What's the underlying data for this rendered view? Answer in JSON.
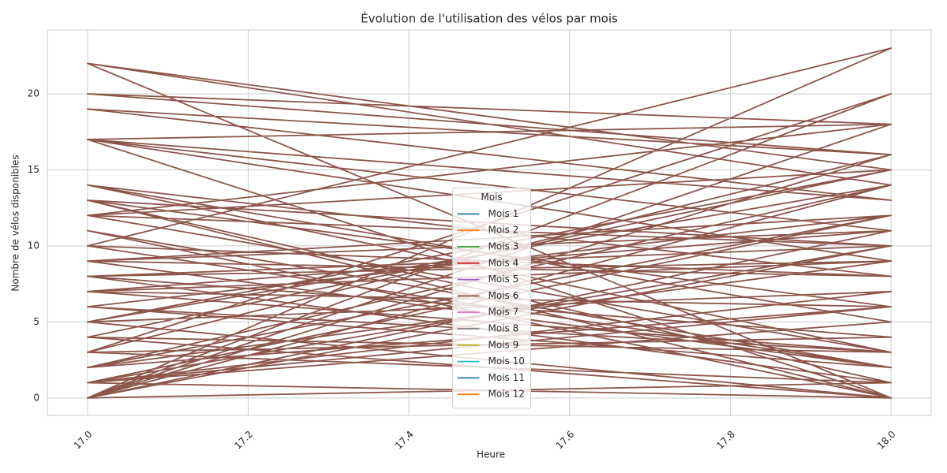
{
  "chart_data": {
    "type": "line",
    "title": "Évolution de l'utilisation des vélos par mois",
    "x_label": "Heure",
    "y_label": "Nombre de vélos disponibles",
    "legend_title": "Mois",
    "legend": "lower center",
    "grid": true,
    "xlim": [
      16.95,
      18.05
    ],
    "xticks": [
      {
        "value": 17,
        "label": "17.0"
      },
      17.2,
      17.4,
      17.6,
      17.8,
      {
        "value": 18,
        "label": "18.0"
      }
    ],
    "ylim": [
      -1.15,
      24.2
    ],
    "yticks": [
      0,
      5,
      10,
      15,
      20
    ],
    "series": [
      {
        "name": "Mois 1",
        "color": "#1f77b4",
        "x": [],
        "values": []
      },
      {
        "name": "Mois 2",
        "color": "#ff7f0e",
        "x": [],
        "values": []
      },
      {
        "name": "Mois 3",
        "color": "#2ca02c",
        "x": [],
        "values": []
      },
      {
        "name": "Mois 4",
        "color": "#d62728",
        "x": [],
        "values": []
      },
      {
        "name": "Mois 5",
        "color": "#9467bd",
        "x": [],
        "values": []
      },
      {
        "name": "Mois 6",
        "color": "#8c564b",
        "x": [
          17,
          18,
          17,
          18,
          17,
          18,
          17,
          18,
          17,
          18,
          17,
          18,
          17,
          18,
          17,
          18,
          17,
          18,
          17,
          18,
          17,
          18,
          17,
          18,
          17,
          18,
          17,
          18,
          17,
          18,
          17,
          18,
          17,
          18,
          17,
          18,
          17,
          18,
          17,
          18,
          17,
          18,
          17,
          18,
          17,
          18,
          17,
          18,
          17,
          18,
          17,
          18,
          17,
          18,
          17,
          18,
          17,
          18,
          17,
          18,
          17,
          18,
          17,
          18,
          17,
          18,
          17,
          18,
          17,
          18,
          17,
          18,
          17,
          18,
          17,
          18,
          17,
          18,
          17,
          18
        ],
        "values": [
          22,
          14,
          0,
          16,
          20,
          18,
          17,
          0,
          5,
          15,
          12,
          3,
          14,
          8,
          10,
          2,
          9,
          11,
          7,
          6,
          13,
          1,
          0,
          10,
          8,
          4,
          3,
          16,
          19,
          13,
          17,
          9,
          2,
          12,
          1,
          7,
          5,
          0,
          11,
          2,
          6,
          3,
          4,
          15,
          22,
          0,
          17,
          11,
          0,
          18,
          12,
          10,
          13,
          0,
          1,
          5,
          14,
          8,
          9,
          12,
          6,
          2,
          10,
          23,
          0,
          20,
          3,
          1,
          8,
          9,
          7,
          3,
          4,
          0,
          5,
          14,
          2,
          6,
          1,
          10
        ]
      },
      {
        "name": "Mois 7",
        "color": "#e377c2",
        "x": [],
        "values": []
      },
      {
        "name": "Mois 8",
        "color": "#7f7f7f",
        "x": [],
        "values": []
      },
      {
        "name": "Mois 9",
        "color": "#bcbd22",
        "x": [],
        "values": []
      },
      {
        "name": "Mois 10",
        "color": "#17becf",
        "x": [],
        "values": []
      },
      {
        "name": "Mois 11",
        "color": "#1f77b4",
        "x": [],
        "values": []
      },
      {
        "name": "Mois 12",
        "color": "#ff7f0e",
        "x": [],
        "values": []
      }
    ]
  }
}
